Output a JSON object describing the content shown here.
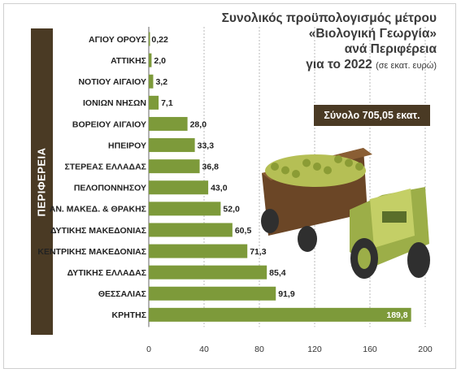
{
  "side_label": "ΠΕΡΙΦΕΡΕΙΑ",
  "title": {
    "line1": "Συνολικός προϋπολογισμός μέτρου",
    "line2": "«Βιολογική Γεωργία»",
    "line3": "ανά Περιφέρεια",
    "line4": "για το 2022",
    "unit": "(σε εκατ. ευρώ)"
  },
  "total_label": "Σύνολο 705,05 εκατ.",
  "colors": {
    "bar": "#7d9a3a",
    "band": "#4a3a24",
    "grid": "#b8b8b8",
    "tractor": "#9cae48",
    "trailer": "#6b4626"
  },
  "chart_data": {
    "type": "bar",
    "orientation": "horizontal",
    "categories": [
      "ΑΓΙΟΥ ΟΡΟΥΣ",
      "ΑΤΤΙΚΗΣ",
      "ΝΟΤΙΟΥ ΑΙΓΑΙΟΥ",
      "ΙΟΝΙΩΝ ΝΗΣΩΝ",
      "ΒΟΡΕΙΟΥ ΑΙΓΑΙΟΥ",
      "ΗΠΕΙΡΟΥ",
      "ΣΤΕΡΕΑΣ ΕΛΛΑΔΑΣ",
      "ΠΕΛΟΠΟΝΝΗΣΟΥ",
      "ΑΝ. ΜΑΚΕΔ. & ΘΡΑΚΗΣ",
      "ΔΥΤΙΚΗΣ ΜΑΚΕΔΟΝΙΑΣ",
      "ΚΕΝΤΡΙΚΗΣ ΜΑΚΕΔΟΝΙΑΣ",
      "ΔΥΤΙΚΗΣ ΕΛΛΑΔΑΣ",
      "ΘΕΣΣΑΛΙΑΣ",
      "ΚΡΗΤΗΣ"
    ],
    "values": [
      0.22,
      2.0,
      3.2,
      7.1,
      28.0,
      33.3,
      36.8,
      43.0,
      52.0,
      60.5,
      71.3,
      85.4,
      91.9,
      189.8
    ],
    "value_labels": [
      "0,22",
      "2,0",
      "3,2",
      "7,1",
      "28,0",
      "33,3",
      "36,8",
      "43,0",
      "52,0",
      "60,5",
      "71,3",
      "85,4",
      "91,9",
      "189,8"
    ],
    "xlim": [
      0,
      200
    ],
    "xticks": [
      0,
      40,
      80,
      120,
      160,
      200
    ],
    "grid": true
  }
}
